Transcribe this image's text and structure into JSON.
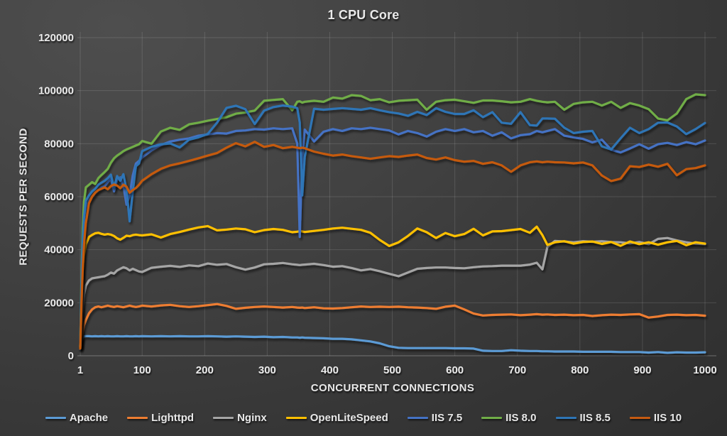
{
  "chart_data": {
    "type": "line",
    "title": "1 CPU Core",
    "xlabel": "CONCURRENT CONNECTIONS",
    "ylabel": "REQUESTS PER SECOND",
    "xlim": [
      1,
      1000
    ],
    "ylim": [
      0,
      120000
    ],
    "x_ticks": [
      1,
      100,
      200,
      300,
      400,
      500,
      600,
      700,
      800,
      900,
      1000
    ],
    "y_ticks": [
      0,
      20000,
      40000,
      60000,
      80000,
      100000,
      120000
    ],
    "grid": true,
    "legend_position": "bottom",
    "x": [
      1,
      3,
      5,
      7,
      10,
      15,
      20,
      25,
      30,
      35,
      40,
      45,
      50,
      55,
      60,
      65,
      70,
      75,
      80,
      85,
      90,
      95,
      100,
      115,
      130,
      145,
      160,
      175,
      190,
      205,
      220,
      235,
      250,
      265,
      280,
      295,
      310,
      325,
      340,
      348,
      352,
      356,
      360,
      375,
      390,
      405,
      420,
      435,
      450,
      465,
      480,
      495,
      510,
      525,
      540,
      555,
      570,
      585,
      600,
      615,
      630,
      645,
      660,
      675,
      690,
      705,
      720,
      731,
      740,
      748,
      760,
      775,
      790,
      805,
      820,
      835,
      850,
      865,
      880,
      895,
      910,
      925,
      940,
      955,
      970,
      985,
      1000
    ],
    "series": [
      {
        "name": "Apache",
        "color": "#5B9BD5",
        "values": [
          2500,
          5500,
          7000,
          7300,
          7400,
          7400,
          7300,
          7400,
          7300,
          7400,
          7300,
          7400,
          7300,
          7300,
          7400,
          7300,
          7300,
          7400,
          7300,
          7300,
          7400,
          7300,
          7400,
          7300,
          7400,
          7300,
          7400,
          7300,
          7300,
          7400,
          7300,
          7200,
          7300,
          7200,
          7100,
          7200,
          7000,
          7100,
          6900,
          6900,
          6800,
          6900,
          6800,
          6700,
          6600,
          6400,
          6400,
          6200,
          5800,
          5400,
          4700,
          3600,
          3000,
          2900,
          2900,
          2900,
          2900,
          2900,
          2800,
          2800,
          2700,
          1900,
          1800,
          1800,
          2100,
          1900,
          1800,
          1800,
          1700,
          1700,
          1600,
          1600,
          1600,
          1500,
          1500,
          1500,
          1500,
          1400,
          1400,
          1400,
          1200,
          1400,
          1100,
          1300,
          1200,
          1200,
          1300
        ]
      },
      {
        "name": "Lighttpd",
        "color": "#ED7D31",
        "values": [
          2600,
          6000,
          9000,
          11500,
          13500,
          16000,
          17500,
          18300,
          18600,
          18300,
          18600,
          18900,
          18600,
          18400,
          18700,
          18500,
          18300,
          18600,
          18900,
          18600,
          18400,
          18600,
          18900,
          18600,
          19000,
          19200,
          18700,
          18400,
          18700,
          19100,
          19500,
          18800,
          17700,
          18100,
          18400,
          18600,
          18400,
          18200,
          18400,
          18200,
          18100,
          18200,
          18000,
          18300,
          17900,
          17800,
          18000,
          18300,
          18600,
          18400,
          18500,
          18400,
          18500,
          18300,
          18200,
          18000,
          17700,
          18500,
          18900,
          17500,
          15900,
          15200,
          15400,
          15500,
          15600,
          15300,
          15500,
          15700,
          15500,
          15600,
          15400,
          15500,
          15300,
          15400,
          15000,
          15300,
          15500,
          15400,
          15600,
          15700,
          14400,
          14800,
          15400,
          15500,
          15300,
          15400,
          15100
        ]
      },
      {
        "name": "Nginx",
        "color": "#A5A5A5",
        "values": [
          3000,
          12000,
          18000,
          23000,
          26500,
          28400,
          29200,
          29400,
          29600,
          29800,
          30000,
          30600,
          31400,
          31000,
          32200,
          32800,
          33400,
          33000,
          32200,
          32800,
          32300,
          31800,
          31600,
          33200,
          33600,
          33900,
          33500,
          34100,
          33800,
          34800,
          34300,
          34600,
          33400,
          32500,
          33300,
          34500,
          34700,
          35000,
          34500,
          34300,
          34200,
          34300,
          34400,
          34700,
          34200,
          33600,
          33800,
          33100,
          32200,
          32700,
          31900,
          30900,
          30000,
          31400,
          32800,
          33100,
          33300,
          33300,
          33100,
          33000,
          33400,
          33700,
          33800,
          34000,
          34000,
          34000,
          34400,
          35100,
          32600,
          41000,
          43300,
          43100,
          42800,
          43200,
          43000,
          43200,
          42900,
          42800,
          42400,
          42900,
          42100,
          44100,
          44400,
          43500,
          42800,
          42300,
          42100
        ]
      },
      {
        "name": "OpenLiteSpeed",
        "color": "#FFC000",
        "values": [
          3200,
          22000,
          32000,
          38000,
          42000,
          44800,
          45600,
          46200,
          46400,
          46000,
          45700,
          45900,
          45700,
          45200,
          44300,
          43800,
          44500,
          45300,
          45100,
          45500,
          45700,
          45500,
          45400,
          45800,
          44600,
          45900,
          46700,
          47600,
          48400,
          48900,
          47300,
          47600,
          48000,
          47700,
          46600,
          47400,
          47800,
          47500,
          46600,
          46800,
          47000,
          46900,
          46700,
          47100,
          47500,
          48000,
          48300,
          47900,
          47500,
          46400,
          43700,
          41400,
          42800,
          45200,
          48000,
          46600,
          44400,
          46300,
          45100,
          45900,
          47900,
          45400,
          46900,
          47000,
          47400,
          47800,
          46400,
          48700,
          45500,
          41800,
          42800,
          43200,
          42300,
          42900,
          43100,
          42200,
          42900,
          41500,
          43100,
          42100,
          42800,
          41900,
          42800,
          43300,
          41700,
          42800,
          42300
        ]
      },
      {
        "name": "IIS 7.5",
        "color": "#4472C4",
        "values": [
          3500,
          25000,
          40000,
          50000,
          56000,
          58500,
          60000,
          61500,
          62500,
          63500,
          64000,
          65500,
          66800,
          62000,
          66500,
          67300,
          64000,
          57000,
          60500,
          68000,
          72500,
          73500,
          74800,
          77500,
          79500,
          80800,
          81500,
          82000,
          83000,
          83500,
          84000,
          83800,
          84800,
          85000,
          85500,
          85300,
          85800,
          85500,
          85800,
          80000,
          44800,
          75000,
          85300,
          80800,
          84500,
          85500,
          84800,
          85800,
          85500,
          86000,
          85500,
          85000,
          83500,
          84800,
          84000,
          82700,
          84500,
          85500,
          84800,
          85500,
          84300,
          84800,
          83000,
          84300,
          82000,
          83200,
          83600,
          84800,
          84300,
          84800,
          85500,
          83000,
          82400,
          81800,
          80500,
          81500,
          77700,
          76700,
          78200,
          79800,
          78100,
          79800,
          80300,
          79500,
          80600,
          79800,
          81200
        ]
      },
      {
        "name": "IIS 8.0",
        "color": "#70AD47",
        "values": [
          3500,
          30000,
          48000,
          58000,
          63500,
          64500,
          65500,
          64800,
          67000,
          68200,
          69300,
          70500,
          72800,
          74500,
          75500,
          76300,
          77200,
          77800,
          78300,
          78800,
          79300,
          79800,
          81000,
          80000,
          84600,
          86000,
          85200,
          87300,
          87900,
          88700,
          89300,
          90000,
          91300,
          91800,
          92500,
          96200,
          96500,
          96800,
          92600,
          95800,
          96000,
          95500,
          95800,
          96200,
          95800,
          97400,
          97000,
          98300,
          98000,
          96400,
          96800,
          95600,
          96200,
          96400,
          96600,
          92800,
          95800,
          96400,
          96600,
          96000,
          95400,
          96300,
          96300,
          96000,
          95600,
          95800,
          96800,
          96200,
          95800,
          95600,
          95800,
          92800,
          95000,
          95600,
          95800,
          94400,
          95800,
          93500,
          95300,
          94400,
          93000,
          89500,
          88800,
          91400,
          96800,
          98600,
          98300
        ]
      },
      {
        "name": "IIS 8.5",
        "color": "#2E75B6",
        "values": [
          3500,
          27000,
          43000,
          52000,
          58500,
          60500,
          62000,
          63000,
          64500,
          65300,
          66000,
          67000,
          68300,
          63500,
          67800,
          66000,
          68500,
          62500,
          50700,
          62000,
          71500,
          72500,
          77200,
          78800,
          79800,
          80100,
          78600,
          81500,
          82400,
          83700,
          88000,
          93500,
          94300,
          93000,
          87400,
          92500,
          93800,
          94400,
          94000,
          93400,
          88000,
          60500,
          75000,
          93200,
          92800,
          93100,
          93400,
          93100,
          92800,
          93400,
          92600,
          91900,
          91400,
          90500,
          92000,
          90800,
          93400,
          92000,
          91200,
          91200,
          92600,
          90000,
          91900,
          87900,
          87500,
          91900,
          87000,
          86800,
          89500,
          89500,
          89400,
          86000,
          84000,
          84500,
          84800,
          79000,
          77800,
          82000,
          86000,
          84000,
          85500,
          87900,
          88000,
          86500,
          83600,
          85500,
          87800
        ]
      },
      {
        "name": "IIS 10",
        "color": "#C55A11",
        "values": [
          2800,
          20000,
          33000,
          42000,
          50000,
          57500,
          60000,
          61500,
          62500,
          63000,
          63500,
          62800,
          64000,
          64600,
          64200,
          63200,
          64500,
          63800,
          61500,
          62500,
          63300,
          64500,
          66000,
          68500,
          70500,
          71800,
          72600,
          73500,
          74500,
          75500,
          76500,
          78500,
          80200,
          79000,
          80700,
          78800,
          79500,
          78300,
          78800,
          78500,
          78300,
          78500,
          78300,
          77000,
          76200,
          75500,
          75900,
          75300,
          74800,
          74300,
          74800,
          75300,
          75000,
          75500,
          75900,
          74600,
          74000,
          74800,
          73800,
          73200,
          73500,
          72400,
          73000,
          71800,
          69400,
          71800,
          73000,
          73300,
          73000,
          73200,
          73000,
          72900,
          72600,
          72900,
          71800,
          68000,
          65900,
          66800,
          71500,
          71200,
          72100,
          71300,
          72400,
          68100,
          70400,
          70800,
          71800
        ]
      }
    ]
  }
}
